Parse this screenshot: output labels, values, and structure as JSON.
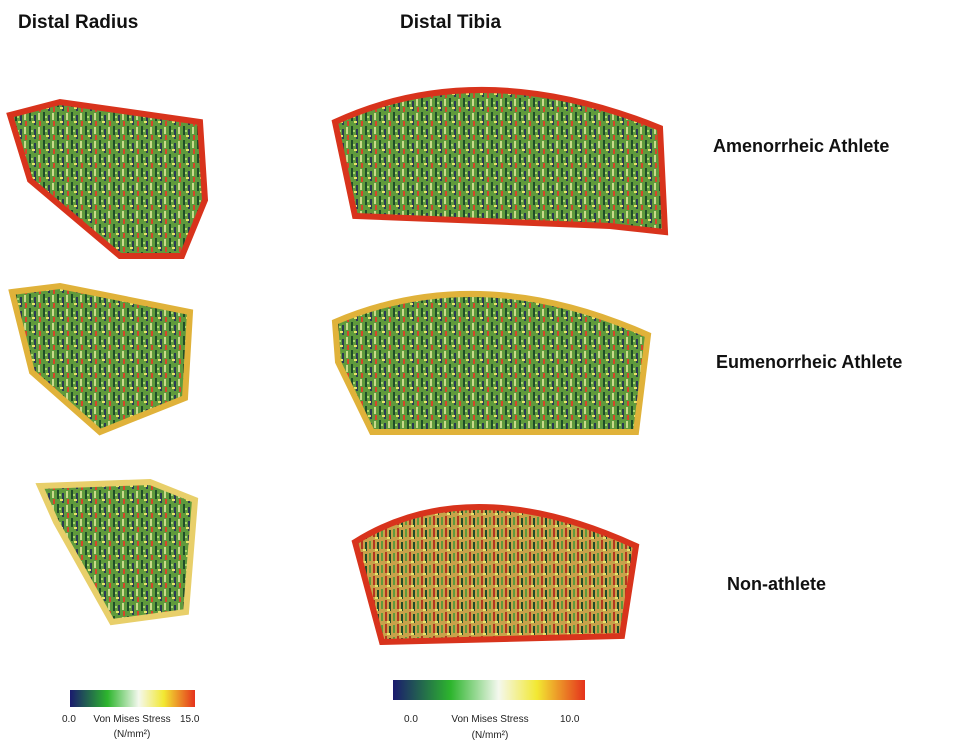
{
  "columns": [
    "Distal Radius",
    "Distal Tibia"
  ],
  "rows": [
    "Amenorrheic Athlete",
    "Eumenorrheic Athlete",
    "Non-athlete"
  ],
  "colorbars": [
    {
      "min": "0.0",
      "label": "Von Mises Stress",
      "max": "15.0",
      "unit": "(N/mm²)"
    },
    {
      "min": "0.0",
      "label": "Von Mises Stress",
      "max": "10.0",
      "unit": "(N/mm²)"
    }
  ]
}
